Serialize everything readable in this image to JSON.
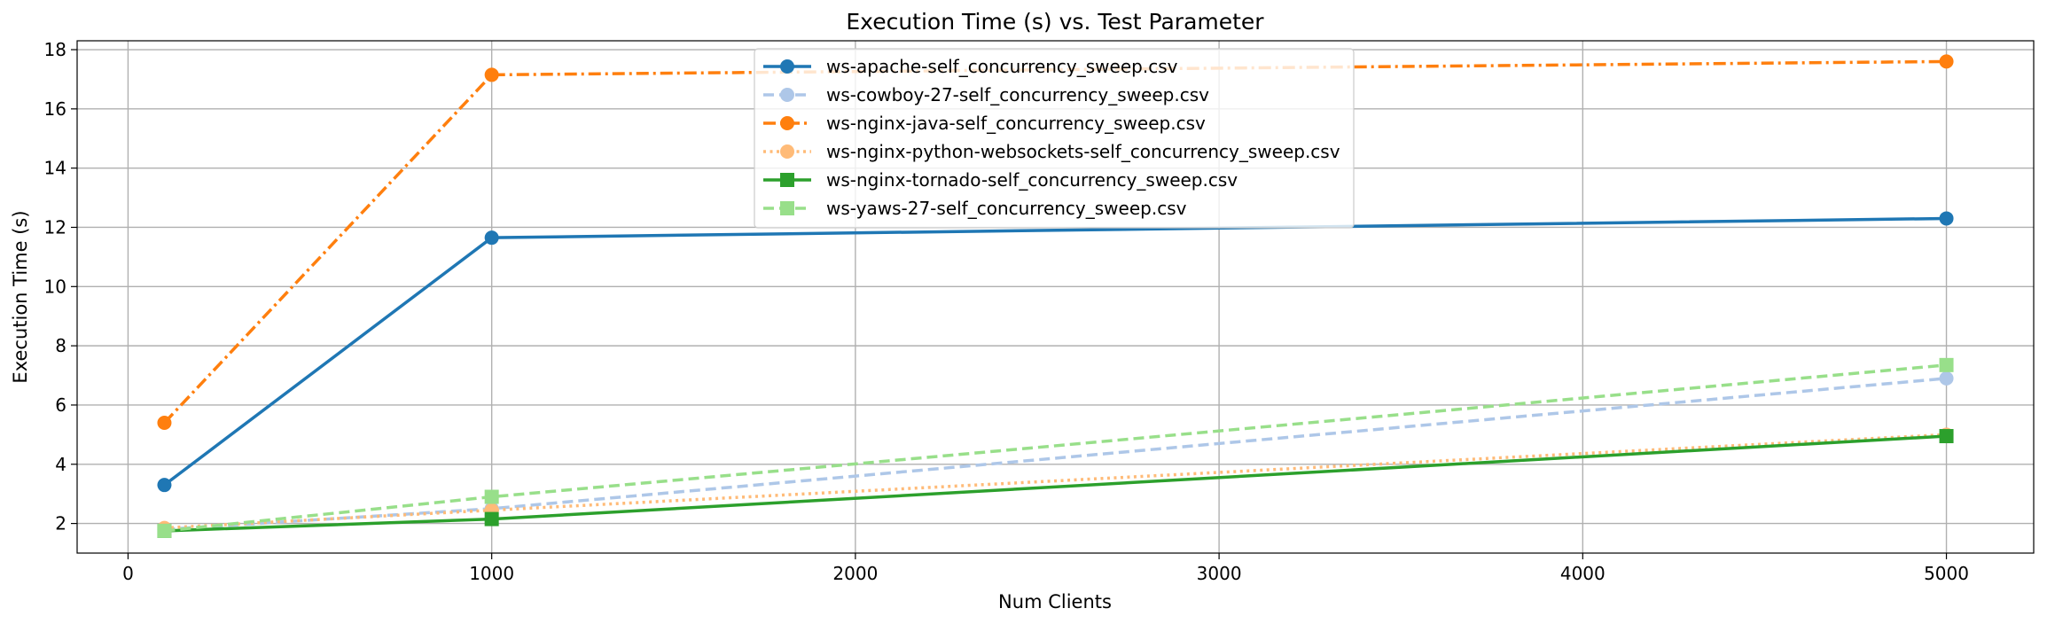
{
  "chart_data": {
    "type": "line",
    "title": "Execution Time (s) vs. Test Parameter",
    "xlabel": "Num Clients",
    "ylabel": "Execution Time (s)",
    "xlim": [
      -140,
      5240
    ],
    "ylim": [
      1.0,
      18.3
    ],
    "xticks": [
      0,
      1000,
      2000,
      3000,
      4000,
      5000
    ],
    "yticks": [
      2,
      4,
      6,
      8,
      10,
      12,
      14,
      16,
      18
    ],
    "grid": true,
    "legend_position": "top-center",
    "x": [
      100,
      1000,
      5000
    ],
    "series": [
      {
        "name": "ws-apache-self_concurrency_sweep.csv",
        "color": "#1f77b4",
        "dash": "solid",
        "marker": "circle",
        "values": [
          3.3,
          11.65,
          12.3
        ]
      },
      {
        "name": "ws-cowboy-27-self_concurrency_sweep.csv",
        "color": "#aec7e8",
        "dash": "dashed",
        "marker": "circle",
        "values": [
          1.8,
          2.5,
          6.9
        ]
      },
      {
        "name": "ws-nginx-java-self_concurrency_sweep.csv",
        "color": "#ff7f0e",
        "dash": "dashdot",
        "marker": "circle",
        "values": [
          5.4,
          17.15,
          17.6
        ]
      },
      {
        "name": "ws-nginx-python-websockets-self_concurrency_sweep.csv",
        "color": "#ffbb78",
        "dash": "dotted",
        "marker": "circle",
        "values": [
          1.85,
          2.45,
          5.0
        ]
      },
      {
        "name": "ws-nginx-tornado-self_concurrency_sweep.csv",
        "color": "#2ca02c",
        "dash": "solid",
        "marker": "square",
        "values": [
          1.75,
          2.15,
          4.95
        ]
      },
      {
        "name": "ws-yaws-27-self_concurrency_sweep.csv",
        "color": "#98df8a",
        "dash": "dashed",
        "marker": "square",
        "values": [
          1.75,
          2.9,
          7.35
        ]
      }
    ]
  }
}
